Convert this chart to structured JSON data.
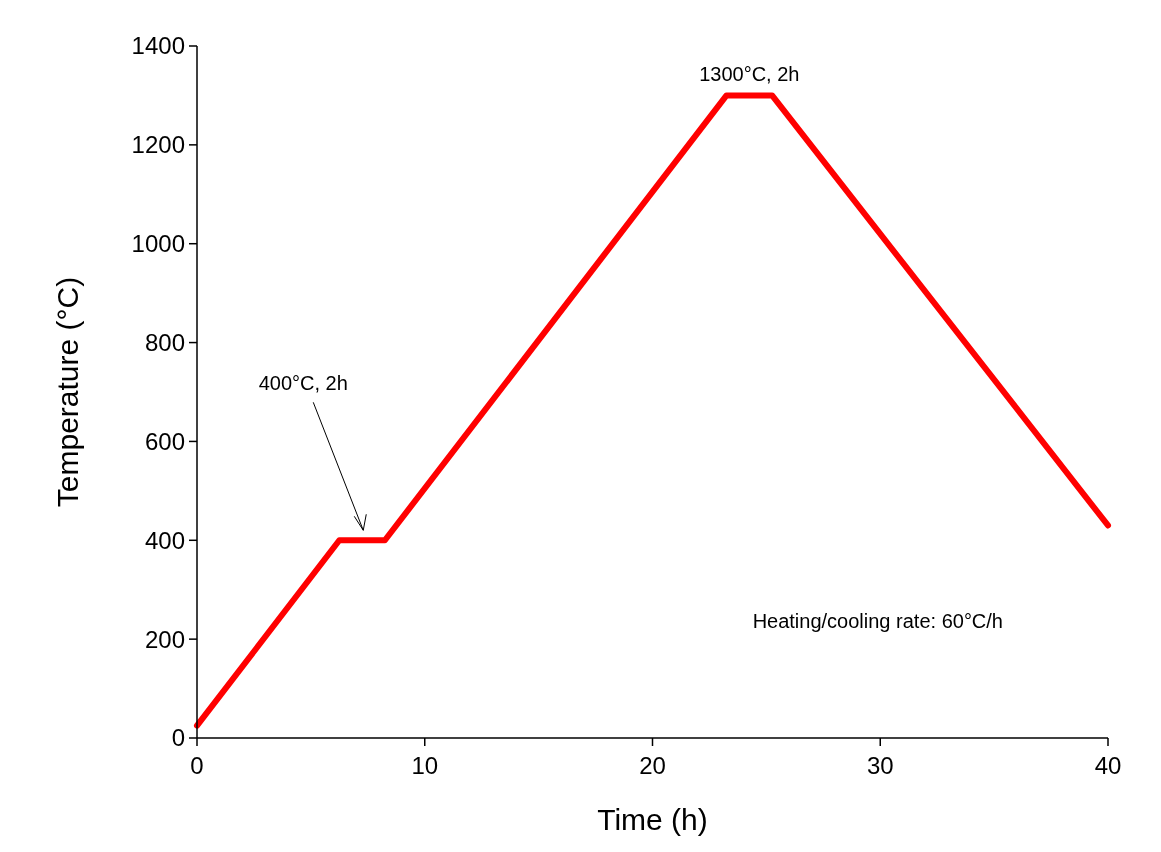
{
  "chart_data": {
    "type": "line",
    "xlabel": "Time (h)",
    "ylabel": "Temperature (°C)",
    "xlim": [
      0,
      40
    ],
    "xticks": [
      0,
      10,
      20,
      30,
      40
    ],
    "ylim": [
      0,
      1400
    ],
    "yticks": [
      0,
      200,
      400,
      600,
      800,
      1000,
      1200,
      1400
    ],
    "grid": false,
    "marker": "none",
    "line_style": "solid",
    "series": [
      {
        "color": "#ff0000",
        "x": [
          0,
          6.25,
          8.25,
          23.25,
          25.25,
          40
        ],
        "values": [
          25,
          400,
          400,
          1300,
          1300,
          430
        ]
      }
    ],
    "annotations": [
      "400°C, 2h",
      {
        "text": "1300°C, 2h",
        "x": 24.25,
        "y": 1300
      },
      "Heating/cooling rate: 60°C/h"
    ]
  }
}
